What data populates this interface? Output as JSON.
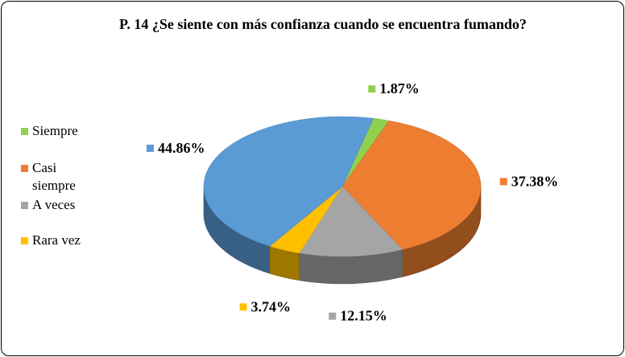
{
  "chart_data": {
    "type": "pie",
    "style": "3d",
    "title": "P. 14 ¿Se siente con más confianza cuando se encuentra fumando?",
    "legend_position": "left",
    "series": [
      {
        "name": "Siempre",
        "value": 1.87,
        "label": "1.87%",
        "color": "#8fd14f"
      },
      {
        "name": "Casi siempre",
        "value": 37.38,
        "label": "37.38%",
        "color": "#ed7d31"
      },
      {
        "name": "A veces",
        "value": 12.15,
        "label": "12.15%",
        "color": "#a5a5a5"
      },
      {
        "name": "Rara vez",
        "value": 3.74,
        "label": "3.74%",
        "color": "#ffc000"
      },
      {
        "name": "",
        "value": 44.86,
        "label": "44.86%",
        "color": "#5b9bd5"
      }
    ]
  }
}
